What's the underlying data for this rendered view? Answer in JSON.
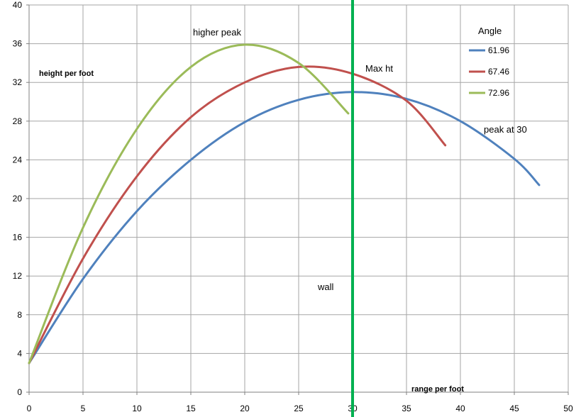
{
  "chart_data": {
    "type": "line",
    "title": "",
    "xlabel": "range per foot",
    "ylabel": "height per foot",
    "xlim": [
      0,
      50
    ],
    "ylim": [
      0,
      40
    ],
    "x_ticks": [
      0,
      5,
      10,
      15,
      20,
      25,
      30,
      35,
      40,
      45,
      50
    ],
    "y_ticks": [
      0,
      4,
      8,
      12,
      16,
      20,
      24,
      28,
      32,
      36,
      40
    ],
    "grid": true,
    "legend": {
      "title": "Angle",
      "placement": "top-right"
    },
    "series": [
      {
        "name": "61.96",
        "color": "#4f81bd",
        "x": [
          0,
          5,
          10,
          15,
          20,
          25,
          30,
          35,
          40,
          45,
          47.3
        ],
        "y": [
          3.0,
          11.7,
          18.7,
          24.0,
          27.9,
          30.2,
          31.0,
          30.3,
          28.0,
          24.1,
          21.4
        ]
      },
      {
        "name": "67.46",
        "color": "#c0504d",
        "x": [
          0,
          5,
          10,
          15,
          20,
          25,
          30,
          35,
          38.6
        ],
        "y": [
          3.0,
          13.8,
          22.3,
          28.4,
          32.0,
          33.6,
          32.9,
          30.1,
          25.5
        ]
      },
      {
        "name": "72.96",
        "color": "#9bbb59",
        "x": [
          0,
          5,
          10,
          15,
          20,
          25,
          29.6
        ],
        "y": [
          3.0,
          17.0,
          27.2,
          33.6,
          35.9,
          34.0,
          28.8
        ]
      }
    ],
    "wall": {
      "x": 30,
      "color": "#00b050"
    },
    "annotations": {
      "higher_peak": "higher peak",
      "max_ht": "Max ht",
      "peak_at_30": "peak at 30",
      "wall": "wall",
      "height_label": "height per foot",
      "range_label": "range per foot"
    }
  }
}
